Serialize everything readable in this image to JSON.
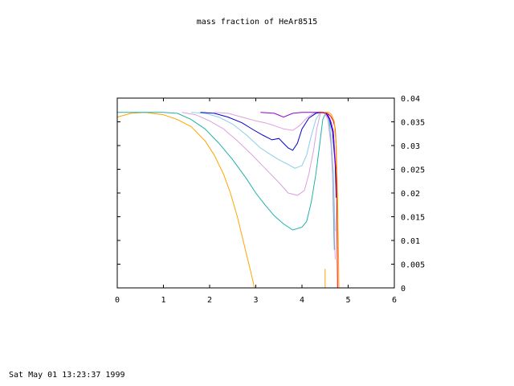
{
  "footer": {
    "timestamp": "Sat May 01 13:23:37 1999"
  },
  "chart_data": {
    "type": "line",
    "title": "mass fraction of HeAr8515",
    "xlabel": "",
    "ylabel": "",
    "xlim": [
      0,
      6
    ],
    "ylim": [
      0,
      0.04
    ],
    "y_axis_side": "right",
    "grid": false,
    "xticks": [
      "0",
      "1",
      "2",
      "3",
      "4",
      "5",
      "6"
    ],
    "yticks": [
      "0",
      "0.005",
      "0.01",
      "0.015",
      "0.02",
      "0.025",
      "0.03",
      "0.035",
      "0.04"
    ],
    "series": [
      {
        "color": "#ffa500",
        "x": [
          0,
          0.3,
          0.6,
          1.0,
          1.3,
          1.6,
          1.9,
          2.1,
          2.3,
          2.45,
          2.6,
          2.7,
          2.8,
          2.9,
          2.97
        ],
        "y": [
          0.036,
          0.0368,
          0.037,
          0.0365,
          0.0355,
          0.034,
          0.031,
          0.028,
          0.024,
          0.02,
          0.015,
          0.011,
          0.007,
          0.003,
          0.0
        ]
      },
      {
        "color": "#20b2aa",
        "x": [
          0,
          0.5,
          1.0,
          1.3,
          1.6,
          1.9,
          2.2,
          2.5,
          2.8,
          3.0,
          3.2,
          3.4,
          3.6,
          3.8,
          4.0,
          4.1,
          4.2,
          4.3,
          4.38,
          4.45,
          4.52,
          4.6,
          4.66,
          4.7
        ],
        "y": [
          0.037,
          0.037,
          0.037,
          0.0368,
          0.0355,
          0.0335,
          0.0305,
          0.027,
          0.023,
          0.02,
          0.0175,
          0.0152,
          0.0135,
          0.0122,
          0.0128,
          0.014,
          0.018,
          0.024,
          0.03,
          0.0355,
          0.037,
          0.035,
          0.025,
          0.008
        ]
      },
      {
        "color": "#dda0dd",
        "x": [
          1.4,
          1.7,
          2.0,
          2.3,
          2.6,
          2.9,
          3.2,
          3.5,
          3.7,
          3.9,
          4.05,
          4.15,
          4.25,
          4.32,
          4.4,
          4.48,
          4.56,
          4.63,
          4.68,
          4.72
        ],
        "y": [
          0.037,
          0.0365,
          0.0352,
          0.0335,
          0.031,
          0.0282,
          0.0252,
          0.0222,
          0.02,
          0.0195,
          0.0205,
          0.024,
          0.029,
          0.0335,
          0.0368,
          0.037,
          0.0355,
          0.03,
          0.02,
          0.006
        ]
      },
      {
        "color": "#87ceeb",
        "x": [
          1.6,
          1.9,
          2.2,
          2.5,
          2.8,
          3.1,
          3.3,
          3.5,
          3.7,
          3.85,
          4.0,
          4.1,
          4.2,
          4.3,
          4.4,
          4.48,
          4.56,
          4.63,
          4.68,
          4.72
        ],
        "y": [
          0.037,
          0.0368,
          0.036,
          0.0345,
          0.0322,
          0.0295,
          0.0282,
          0.027,
          0.026,
          0.0252,
          0.0258,
          0.028,
          0.032,
          0.0355,
          0.037,
          0.037,
          0.036,
          0.032,
          0.024,
          0.012
        ]
      },
      {
        "color": "#dda0dd",
        "x": [
          2.1,
          2.4,
          2.7,
          3.0,
          3.2,
          3.4,
          3.6,
          3.8,
          3.95,
          4.1,
          4.25,
          4.4,
          4.5,
          4.6,
          4.68,
          4.74
        ],
        "y": [
          0.037,
          0.0368,
          0.036,
          0.0352,
          0.0348,
          0.0342,
          0.0335,
          0.0332,
          0.0342,
          0.0358,
          0.0368,
          0.037,
          0.0368,
          0.0355,
          0.032,
          0.022
        ]
      },
      {
        "color": "#0000cd",
        "x": [
          1.8,
          2.1,
          2.4,
          2.7,
          2.95,
          3.15,
          3.35,
          3.5,
          3.6,
          3.7,
          3.8,
          3.9,
          4.0,
          4.15,
          4.3,
          4.42,
          4.52,
          4.6,
          4.66,
          4.72,
          4.74
        ],
        "y": [
          0.037,
          0.0368,
          0.036,
          0.0348,
          0.0333,
          0.0322,
          0.0312,
          0.0315,
          0.0305,
          0.0295,
          0.029,
          0.0305,
          0.0335,
          0.0358,
          0.0368,
          0.037,
          0.0368,
          0.0355,
          0.033,
          0.026,
          0.019
        ]
      },
      {
        "color": "#9400d3",
        "x": [
          3.1,
          3.4,
          3.6,
          3.8,
          4.0,
          4.2,
          4.4,
          4.55,
          4.62,
          4.68,
          4.73
        ],
        "y": [
          0.037,
          0.0368,
          0.036,
          0.0368,
          0.037,
          0.037,
          0.037,
          0.0368,
          0.0352,
          0.033,
          0.025
        ]
      },
      {
        "color": "#ff0000",
        "x": [
          4.35,
          4.45,
          4.55,
          4.62,
          4.68,
          4.72,
          4.74,
          4.75,
          4.76,
          4.77
        ],
        "y": [
          0.037,
          0.037,
          0.0368,
          0.0362,
          0.0352,
          0.0335,
          0.03,
          0.022,
          0.012,
          0.0
        ]
      },
      {
        "color": "#ffa500",
        "x": [
          4.5,
          4.58,
          4.64,
          4.7,
          4.74,
          4.77,
          4.79,
          4.8
        ],
        "y": [
          0.037,
          0.037,
          0.0365,
          0.035,
          0.03,
          0.02,
          0.008,
          0.0
        ]
      },
      {
        "color": "#ffa500",
        "x": [
          4.5,
          4.5
        ],
        "y": [
          0.004,
          0.0
        ]
      }
    ]
  }
}
